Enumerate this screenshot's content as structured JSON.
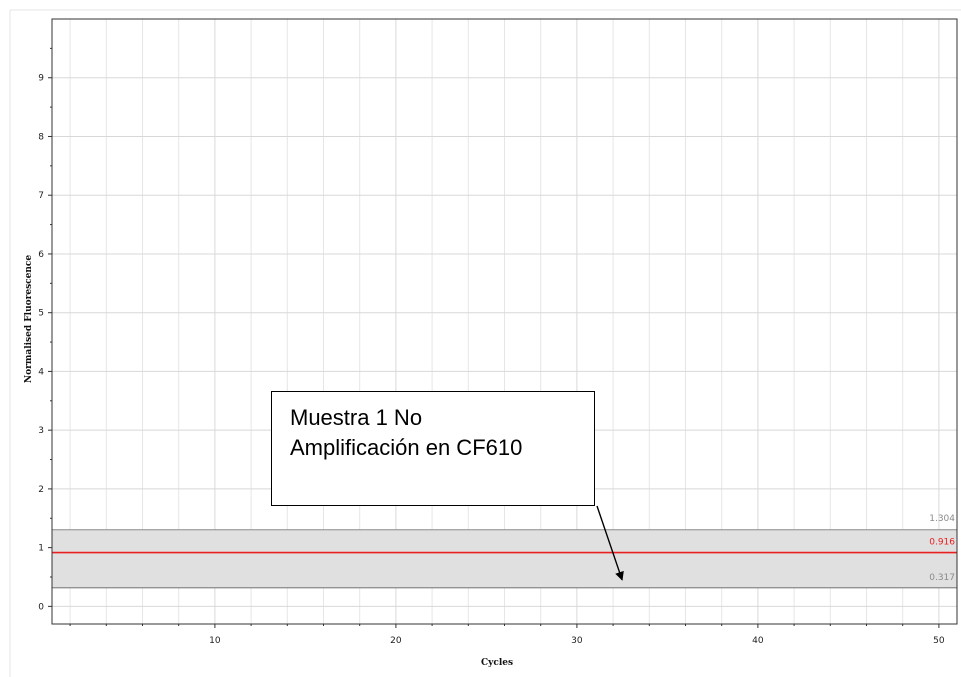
{
  "chart_data": {
    "type": "line",
    "title": "",
    "xlabel": "Cycles",
    "ylabel": "Normalised Fluorescence",
    "xlim": [
      1,
      51
    ],
    "ylim": [
      -0.3,
      10
    ],
    "x_ticks": [
      10,
      20,
      30,
      40,
      50
    ],
    "y_ticks": [
      0,
      1,
      2,
      3,
      4,
      5,
      6,
      7,
      8,
      9
    ],
    "grid": true,
    "threshold_band": {
      "lower": 0.317,
      "upper": 1.304,
      "lower_label": "0.317",
      "upper_label": "1.304"
    },
    "threshold_line": {
      "value": 0.916,
      "label": "0.916",
      "color": "#e8201f"
    },
    "annotation": {
      "lines": [
        "Muestra 1 No",
        "Amplificación en CF610"
      ],
      "arrow_target": {
        "x": 32.5,
        "y": 0.45
      }
    }
  },
  "colors": {
    "grid": "#d8d8d8",
    "band": "#e0e0e0",
    "band_edge": "#8a8a8a",
    "threshold": "#e8201f",
    "axis": "#333333"
  }
}
